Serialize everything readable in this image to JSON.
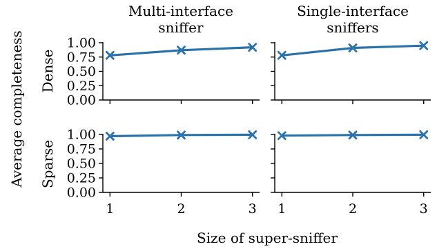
{
  "chart_data": {
    "type": "line",
    "title": "",
    "xlabel": "Size of super-sniffer",
    "ylabel": "Average completeness",
    "x": [
      1,
      2,
      3
    ],
    "x_ticks": [
      "1",
      "2",
      "3"
    ],
    "xlim": [
      0.9,
      3.1
    ],
    "ylim": [
      0,
      1
    ],
    "y_ticks": [
      "0.00",
      "0.25",
      "0.50",
      "0.75",
      "1.00"
    ],
    "column_titles": [
      [
        "Multi-interface",
        "sniffer"
      ],
      [
        "Single-interface",
        "sniffers"
      ]
    ],
    "row_labels": [
      "Dense",
      "Sparse"
    ],
    "grid": false,
    "marker": "x",
    "series_color": "#2a72ac",
    "panels": [
      {
        "row": "Dense",
        "column": "Multi-interface sniffer",
        "values": [
          0.78,
          0.87,
          0.92
        ]
      },
      {
        "row": "Dense",
        "column": "Single-interface sniffers",
        "values": [
          0.78,
          0.91,
          0.95
        ]
      },
      {
        "row": "Sparse",
        "column": "Multi-interface sniffer",
        "values": [
          0.97,
          0.99,
          0.995
        ]
      },
      {
        "row": "Sparse",
        "column": "Single-interface sniffers",
        "values": [
          0.98,
          0.99,
          0.995
        ]
      }
    ]
  }
}
